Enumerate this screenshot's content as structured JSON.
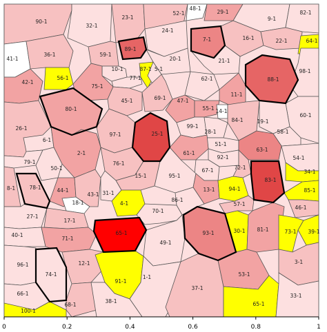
{
  "palette": {
    "c0": "#ffffff",
    "c1": "#fde0e0",
    "c2": "#f7c1c1",
    "c3": "#f2a3a3",
    "c4": "#ec8585",
    "c5": "#e66565",
    "c6": "#e04646",
    "c7": "#ff0000",
    "yellow": "#ffff00",
    "highlight_border": "#000000"
  },
  "x_axis": {
    "min": 0,
    "max": 1,
    "ticks": [
      {
        "value": 0,
        "label": "0"
      },
      {
        "value": 0.2,
        "label": "0.2"
      },
      {
        "value": 0.4,
        "label": "0.4"
      },
      {
        "value": 0.6,
        "label": "0.6"
      },
      {
        "value": 0.8,
        "label": "0.8"
      },
      {
        "value": 1,
        "label": "1"
      }
    ]
  },
  "cells": [
    {
      "label": "90-1",
      "fill": "c2"
    },
    {
      "label": "32-1",
      "fill": "c1"
    },
    {
      "label": "23-1",
      "fill": "c2"
    },
    {
      "label": "52-1",
      "fill": "c2"
    },
    {
      "label": "48-1",
      "fill": "c0"
    },
    {
      "label": "29-1",
      "fill": "c3"
    },
    {
      "label": "9-1",
      "fill": "c1"
    },
    {
      "label": "82-1",
      "fill": "c1"
    },
    {
      "label": "24-1",
      "fill": "c1"
    },
    {
      "label": "7-1",
      "fill": "c4",
      "bold": true
    },
    {
      "label": "16-1",
      "fill": "c2"
    },
    {
      "label": "22-1",
      "fill": "c2"
    },
    {
      "label": "64-1",
      "fill": "yellow"
    },
    {
      "label": "41-1",
      "fill": "c0"
    },
    {
      "label": "36-1",
      "fill": "c2"
    },
    {
      "label": "59-1",
      "fill": "c2"
    },
    {
      "label": "89-1",
      "fill": "c5",
      "bold": true
    },
    {
      "label": "20-1",
      "fill": "c1"
    },
    {
      "label": "21-1",
      "fill": "c1"
    },
    {
      "label": "98-1",
      "fill": "c1"
    },
    {
      "label": "88-1",
      "fill": "c5",
      "bold": true
    },
    {
      "label": "10-1",
      "fill": "c1"
    },
    {
      "label": "87-1",
      "fill": "yellow"
    },
    {
      "label": "5-1",
      "fill": "c1"
    },
    {
      "label": "77-1",
      "fill": "c1"
    },
    {
      "label": "42-1",
      "fill": "c3"
    },
    {
      "label": "56-1",
      "fill": "yellow"
    },
    {
      "label": "75-1",
      "fill": "c3"
    },
    {
      "label": "62-1",
      "fill": "c1"
    },
    {
      "label": "11-1",
      "fill": "c3"
    },
    {
      "label": "45-1",
      "fill": "c2"
    },
    {
      "label": "69-1",
      "fill": "c2"
    },
    {
      "label": "47-1",
      "fill": "c3"
    },
    {
      "label": "80-1",
      "fill": "c3",
      "bold": true
    },
    {
      "label": "55-1",
      "fill": "c3"
    },
    {
      "label": "14-1",
      "fill": "c0"
    },
    {
      "label": "84-1",
      "fill": "c2"
    },
    {
      "label": "60-1",
      "fill": "c1"
    },
    {
      "label": "19-1",
      "fill": "c1"
    },
    {
      "label": "25-1",
      "fill": "c6",
      "bold": true
    },
    {
      "label": "99-1",
      "fill": "c1"
    },
    {
      "label": "28-1",
      "fill": "c1"
    },
    {
      "label": "58-1",
      "fill": "c1"
    },
    {
      "label": "26-1",
      "fill": "c2"
    },
    {
      "label": "97-1",
      "fill": "c2"
    },
    {
      "label": "51-1",
      "fill": "c1"
    },
    {
      "label": "6-1",
      "fill": "c1"
    },
    {
      "label": "63-1",
      "fill": "c4"
    },
    {
      "label": "2-1",
      "fill": "c3"
    },
    {
      "label": "61-1",
      "fill": "c3"
    },
    {
      "label": "92-1",
      "fill": "c1"
    },
    {
      "label": "54-1",
      "fill": "c1"
    },
    {
      "label": "79-1",
      "fill": "c1"
    },
    {
      "label": "76-1",
      "fill": "c2"
    },
    {
      "label": "72-1",
      "fill": "c2"
    },
    {
      "label": "50-1",
      "fill": "c1"
    },
    {
      "label": "67-1",
      "fill": "c1"
    },
    {
      "label": "83-1",
      "fill": "c6",
      "bold": true
    },
    {
      "label": "34-1",
      "fill": "yellow"
    },
    {
      "label": "15-1",
      "fill": "c2"
    },
    {
      "label": "95-1",
      "fill": "c1"
    },
    {
      "label": "8-1",
      "fill": "c2"
    },
    {
      "label": "78-1",
      "fill": "c2",
      "bold": true
    },
    {
      "label": "44-1",
      "fill": "c3"
    },
    {
      "label": "43-1",
      "fill": "c2"
    },
    {
      "label": "31-1",
      "fill": "c1"
    },
    {
      "label": "13-1",
      "fill": "c3"
    },
    {
      "label": "94-1",
      "fill": "yellow"
    },
    {
      "label": "85-1",
      "fill": "yellow"
    },
    {
      "label": "18-1",
      "fill": "c0"
    },
    {
      "label": "4-1",
      "fill": "yellow"
    },
    {
      "label": "86-1",
      "fill": "c1"
    },
    {
      "label": "57-1",
      "fill": "c2"
    },
    {
      "label": "46-1",
      "fill": "c2"
    },
    {
      "label": "27-1",
      "fill": "c1"
    },
    {
      "label": "17-1",
      "fill": "c2"
    },
    {
      "label": "70-1",
      "fill": "c1"
    },
    {
      "label": "40-1",
      "fill": "c1"
    },
    {
      "label": "71-1",
      "fill": "c3"
    },
    {
      "label": "65-1",
      "fill": "c7",
      "bold": true
    },
    {
      "label": "49-1",
      "fill": "c1"
    },
    {
      "label": "93-1",
      "fill": "c4",
      "bold": true
    },
    {
      "label": "30-1",
      "fill": "yellow"
    },
    {
      "label": "81-1",
      "fill": "c3"
    },
    {
      "label": "73-1",
      "fill": "yellow"
    },
    {
      "label": "39-1",
      "fill": "yellow"
    },
    {
      "label": "96-1",
      "fill": "c1"
    },
    {
      "label": "12-1",
      "fill": "c2"
    },
    {
      "label": "74-1",
      "fill": "c1",
      "bold": true
    },
    {
      "label": "91-1",
      "fill": "yellow"
    },
    {
      "label": "1-1",
      "fill": "c1"
    },
    {
      "label": "37-1",
      "fill": "c2"
    },
    {
      "label": "53-1",
      "fill": "c3"
    },
    {
      "label": "3-1",
      "fill": "c2"
    },
    {
      "label": "66-1",
      "fill": "c1"
    },
    {
      "label": "68-1",
      "fill": "c2"
    },
    {
      "label": "38-1",
      "fill": "c1"
    },
    {
      "label": "65-1",
      "fill": "yellow"
    },
    {
      "label": "33-1",
      "fill": "c1"
    },
    {
      "label": "100-1",
      "fill": "yellow"
    }
  ]
}
